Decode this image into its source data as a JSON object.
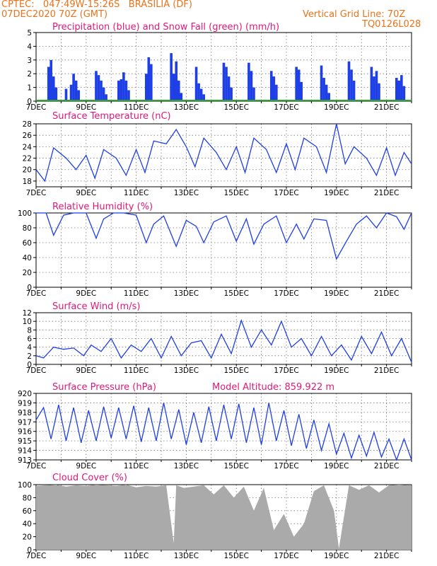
{
  "header": {
    "line1_left": "CPTEC:   047:49W-15:26S   BRASILIA (DF)",
    "line2_left": "07DEC2020 70Z (GMT)",
    "line2_right": "Vertical Grid Line: 70Z",
    "line3_right": "TQ0126L028"
  },
  "x_tick_labels": [
    "7DEC",
    "9DEC",
    "11DEC",
    "13DEC",
    "15DEC",
    "17DEC",
    "19DEC",
    "21DEC"
  ],
  "colors": {
    "series": "#1e3ee6",
    "snow": "#2aa52a",
    "cloud": "#aaaaaa",
    "title": "#e0187a",
    "header": "#e8731c"
  },
  "chart_data": [
    {
      "type": "bar",
      "title": "Precipitation (blue) and Snow Fall (green) (mm/h)",
      "ylim": [
        0,
        5
      ],
      "yticks": [
        "0",
        "1",
        "2",
        "3",
        "4",
        "5"
      ],
      "grid": true,
      "series": [
        {
          "name": "Precipitation",
          "x": [
            7.5,
            7.6,
            7.7,
            7.8,
            8.2,
            8.4,
            8.5,
            8.6,
            8.7,
            9.4,
            9.5,
            9.6,
            9.7,
            9.8,
            10.3,
            10.4,
            10.5,
            10.6,
            10.7,
            11.4,
            11.5,
            11.6,
            12.4,
            12.5,
            12.6,
            12.7,
            12.8,
            13.4,
            13.5,
            13.6,
            13.7,
            14.5,
            14.6,
            14.7,
            14.8,
            15.5,
            15.6,
            15.7,
            16.4,
            16.5,
            16.6,
            17.4,
            17.5,
            17.6,
            18.4,
            18.5,
            18.6,
            18.7,
            19.5,
            19.6,
            19.7,
            20.4,
            20.5,
            20.6,
            20.7,
            21.4,
            21.5,
            21.6,
            21.7
          ],
          "values": [
            2.5,
            3.0,
            1.8,
            1.0,
            0.9,
            1.2,
            2.0,
            1.5,
            0.8,
            2.2,
            1.9,
            1.5,
            1.0,
            0.5,
            1.5,
            1.6,
            2.1,
            1.5,
            0.8,
            2.0,
            3.2,
            2.7,
            3.5,
            2.0,
            2.9,
            1.5,
            0.6,
            2.5,
            1.3,
            0.9,
            0.5,
            2.8,
            2.5,
            1.8,
            1.0,
            2.8,
            2.2,
            1.0,
            2.2,
            1.8,
            1.2,
            2.5,
            2.3,
            1.4,
            2.6,
            1.7,
            1.2,
            0.6,
            2.9,
            2.3,
            1.5,
            2.5,
            1.8,
            2.2,
            1.3,
            1.7,
            1.5,
            1.9,
            1.1
          ]
        },
        {
          "name": "Snow Fall",
          "x": [
            7,
            22
          ],
          "values": [
            0,
            0
          ]
        }
      ]
    },
    {
      "type": "line",
      "title": "Surface Temperature (nC)",
      "ylim": [
        17,
        28
      ],
      "yticks": [
        "18",
        "20",
        "22",
        "24",
        "26",
        "28"
      ],
      "grid": true,
      "x": [
        7.0,
        7.35,
        7.7,
        8.2,
        8.6,
        9.0,
        9.35,
        9.7,
        10.2,
        10.6,
        11.0,
        11.35,
        11.7,
        12.2,
        12.6,
        13.0,
        13.35,
        13.7,
        14.2,
        14.6,
        15.0,
        15.35,
        15.7,
        16.2,
        16.6,
        17.0,
        17.35,
        17.7,
        18.2,
        18.6,
        19.0,
        19.35,
        19.7,
        20.2,
        20.6,
        21.0,
        21.35,
        21.7,
        22.0
      ],
      "y": [
        20.0,
        18.0,
        23.8,
        22.0,
        20.0,
        22.5,
        18.5,
        23.5,
        22.0,
        19.0,
        23.5,
        19.5,
        25.0,
        24.5,
        27.0,
        24.0,
        20.5,
        25.5,
        23.0,
        20.0,
        24.0,
        19.5,
        25.5,
        23.5,
        19.5,
        24.5,
        20.0,
        25.5,
        24.0,
        19.5,
        28.0,
        21.0,
        24.0,
        22.0,
        19.0,
        23.8,
        19.0,
        23.0,
        21.0
      ]
    },
    {
      "type": "line",
      "title": "Relative Humidity (%)",
      "ylim": [
        0,
        100
      ],
      "yticks": [
        "0",
        "20",
        "40",
        "60",
        "80",
        "100"
      ],
      "grid": true,
      "x": [
        7.0,
        7.4,
        7.7,
        8.1,
        8.5,
        9.0,
        9.4,
        9.7,
        10.1,
        10.5,
        11.0,
        11.4,
        11.7,
        12.1,
        12.6,
        13.0,
        13.4,
        13.7,
        14.1,
        14.6,
        15.0,
        15.4,
        15.7,
        16.1,
        16.6,
        17.0,
        17.4,
        17.7,
        18.1,
        18.6,
        19.0,
        19.4,
        19.8,
        20.2,
        20.6,
        21.0,
        21.4,
        21.7,
        22.0
      ],
      "y": [
        100,
        100,
        70,
        97,
        100,
        100,
        66,
        92,
        100,
        100,
        97,
        60,
        85,
        96,
        55,
        90,
        82,
        60,
        88,
        96,
        62,
        92,
        58,
        85,
        96,
        60,
        85,
        65,
        92,
        90,
        38,
        62,
        85,
        96,
        80,
        100,
        95,
        78,
        100
      ]
    },
    {
      "type": "line",
      "title": "Surface Wind (m/s)",
      "ylim": [
        0,
        12
      ],
      "yticks": [
        "0",
        "2",
        "4",
        "6",
        "8",
        "10",
        "12"
      ],
      "grid": true,
      "x": [
        7.0,
        7.3,
        7.7,
        8.1,
        8.5,
        8.9,
        9.2,
        9.6,
        10.0,
        10.4,
        10.8,
        11.2,
        11.6,
        12.0,
        12.4,
        12.8,
        13.2,
        13.6,
        14.0,
        14.4,
        14.8,
        15.2,
        15.6,
        16.0,
        16.4,
        16.8,
        17.2,
        17.6,
        18.0,
        18.4,
        18.8,
        19.2,
        19.6,
        20.0,
        20.4,
        20.8,
        21.2,
        21.6,
        22.0
      ],
      "y": [
        2.0,
        1.5,
        4.0,
        3.5,
        3.8,
        2.0,
        4.5,
        3.0,
        6.0,
        1.5,
        4.5,
        3.0,
        6.0,
        1.5,
        6.5,
        2.0,
        5.0,
        5.5,
        1.5,
        7.0,
        2.5,
        10.2,
        4.0,
        8.0,
        4.5,
        10.0,
        4.0,
        6.0,
        2.0,
        6.5,
        2.0,
        4.5,
        1.0,
        6.5,
        2.5,
        7.5,
        2.0,
        6.0,
        0.5
      ]
    },
    {
      "type": "line",
      "title": "Surface Pressure (hPa)",
      "annotation": "Model Altitude: 859.922 m",
      "ylim": [
        913,
        920
      ],
      "yticks": [
        "913",
        "914",
        "915",
        "916",
        "917",
        "918",
        "919",
        "920"
      ],
      "grid": true,
      "x": [
        7.0,
        7.3,
        7.6,
        7.9,
        8.2,
        8.5,
        8.8,
        9.1,
        9.4,
        9.7,
        10.0,
        10.3,
        10.6,
        10.9,
        11.2,
        11.5,
        11.8,
        12.1,
        12.4,
        12.7,
        13.0,
        13.3,
        13.6,
        13.9,
        14.2,
        14.5,
        14.8,
        15.1,
        15.4,
        15.7,
        16.0,
        16.3,
        16.6,
        16.9,
        17.2,
        17.5,
        17.8,
        18.1,
        18.4,
        18.7,
        19.0,
        19.3,
        19.6,
        19.9,
        20.2,
        20.5,
        20.8,
        21.1,
        21.4,
        21.7,
        22.0
      ],
      "y": [
        917.2,
        918.5,
        915.2,
        918.8,
        915.0,
        918.5,
        914.8,
        918.2,
        915.0,
        918.6,
        915.3,
        918.5,
        915.2,
        918.7,
        914.9,
        918.5,
        915.0,
        919.0,
        915.2,
        918.3,
        914.6,
        918.0,
        914.8,
        918.6,
        915.0,
        918.8,
        915.2,
        918.9,
        914.8,
        918.5,
        914.6,
        919.0,
        915.0,
        918.2,
        914.5,
        917.8,
        914.2,
        917.2,
        914.0,
        916.8,
        913.6,
        915.8,
        913.2,
        915.6,
        913.4,
        915.9,
        913.3,
        915.2,
        913.0,
        915.2,
        913.0
      ]
    },
    {
      "type": "area",
      "title": "Cloud Cover (%)",
      "ylim": [
        0,
        100
      ],
      "yticks": [
        "0",
        "20",
        "40",
        "60",
        "80",
        "100"
      ],
      "grid": true,
      "x": [
        7.0,
        7.4,
        7.8,
        8.2,
        8.6,
        9.0,
        9.4,
        9.8,
        10.2,
        10.6,
        11.0,
        11.4,
        11.8,
        12.2,
        12.5,
        12.6,
        12.9,
        13.3,
        13.7,
        14.1,
        14.5,
        14.9,
        15.3,
        15.7,
        16.1,
        16.5,
        16.9,
        17.3,
        17.7,
        18.1,
        18.5,
        18.9,
        19.1,
        19.5,
        19.9,
        20.3,
        20.7,
        21.1,
        21.5,
        21.9,
        22.0
      ],
      "y": [
        98,
        99,
        100,
        97,
        99,
        98,
        100,
        99,
        98,
        100,
        96,
        98,
        97,
        99,
        10,
        99,
        95,
        97,
        99,
        85,
        99,
        80,
        97,
        60,
        95,
        30,
        55,
        20,
        40,
        90,
        99,
        60,
        2,
        99,
        92,
        99,
        88,
        99,
        100,
        99,
        99
      ]
    }
  ]
}
